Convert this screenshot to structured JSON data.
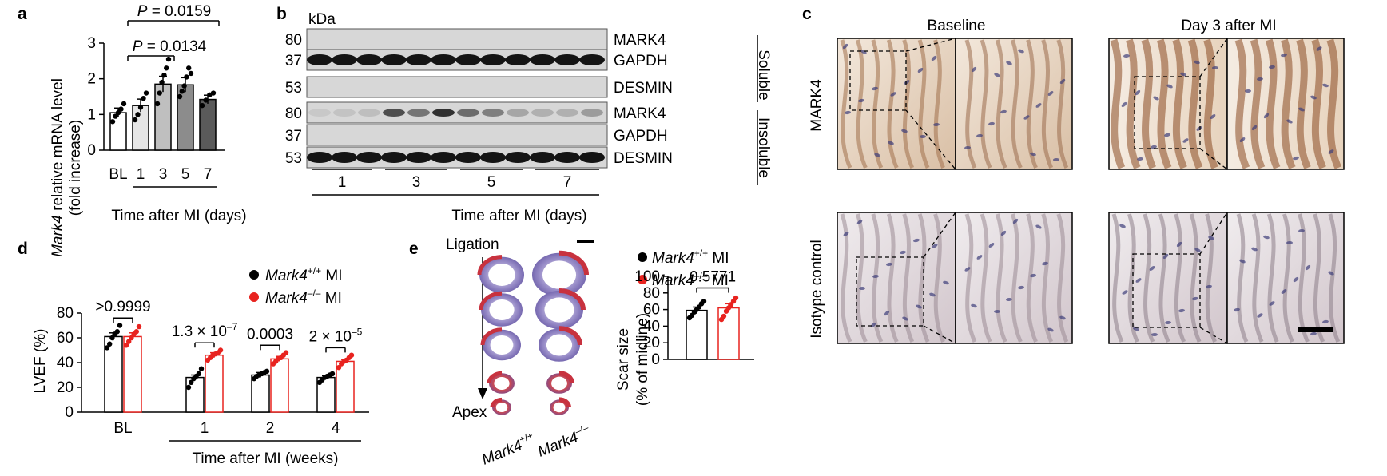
{
  "panels": {
    "a": {
      "letter": "a",
      "ylabel_italic": "Mark4",
      "ylabel_rest": " relative mRNA level",
      "ylabel_line2": "(fold increase)",
      "xlabel": "Time after MI (days)",
      "p_top": "= 0.0159",
      "p_low": "= 0.0134",
      "p_sym": "P"
    },
    "b": {
      "letter": "b",
      "kda": "kDa",
      "mw": [
        "80",
        "37",
        "53",
        "80",
        "37",
        "53"
      ],
      "proteins": [
        "MARK4",
        "GAPDH",
        "DESMIN",
        "MARK4",
        "GAPDH",
        "DESMIN"
      ],
      "fractions": [
        "Soluble",
        "Insoluble"
      ],
      "timepoints": [
        "1",
        "3",
        "5",
        "7"
      ],
      "xlabel": "Time after MI (days)"
    },
    "c": {
      "letter": "c",
      "col_titles": [
        "Baseline",
        "Day 3 after MI"
      ],
      "row_titles": [
        "MARK4",
        "Isotype control"
      ]
    },
    "d": {
      "letter": "d",
      "ylabel": "LVEF (%)",
      "xlabel": "Time after MI (weeks)",
      "legend": [
        {
          "italic": "Mark4",
          "sup": "+/+",
          "rest": " MI",
          "color": "#000000"
        },
        {
          "italic": "Mark4",
          "sup": "–/–",
          "rest": " MI",
          "color": "#e8231f"
        }
      ],
      "pvalues": [
        ">0.9999",
        "1.3 × 10",
        "0.0003",
        "2 × 10"
      ],
      "pexp": [
        "",
        "–7",
        "",
        "–5"
      ]
    },
    "e": {
      "letter": "e",
      "ligation": "Ligation",
      "apex": "Apex",
      "genotypes": [
        {
          "italic": "Mark4",
          "sup": "+/+"
        },
        {
          "italic": "Mark4",
          "sup": "–/–"
        }
      ],
      "ylabel": "Scar size",
      "ylabel_line2": "(% of midline)",
      "pvalue": "0.5771",
      "legend": [
        {
          "italic": "Mark4",
          "sup": "+/+",
          "rest": " MI",
          "color": "#000000"
        },
        {
          "italic": "Mark4",
          "sup": "–/–",
          "rest": " MI",
          "color": "#e8231f"
        }
      ]
    }
  },
  "chart_data": [
    {
      "panel": "a",
      "type": "bar",
      "categories": [
        "BL",
        "1",
        "3",
        "5",
        "7"
      ],
      "values": [
        1.05,
        1.25,
        1.85,
        1.83,
        1.42
      ],
      "errors": [
        0.13,
        0.18,
        0.22,
        0.2,
        0.12
      ],
      "points": [
        [
          0.8,
          0.95,
          1.05,
          1.15,
          1.3
        ],
        [
          0.85,
          1.0,
          1.2,
          1.45,
          1.6
        ],
        [
          1.3,
          1.6,
          1.9,
          2.1,
          2.3,
          2.55
        ],
        [
          1.5,
          1.65,
          1.8,
          2.05,
          2.3,
          2.15
        ],
        [
          1.25,
          1.4,
          1.55,
          1.6
        ]
      ],
      "bar_colors": [
        "#ffffff",
        "#e6e6e6",
        "#bfbfbf",
        "#8c8c8c",
        "#5a5a5a"
      ],
      "ylim": [
        0,
        3
      ],
      "yticks": [
        "0",
        "1",
        "2",
        "3"
      ],
      "ylabel": "Mark4 relative mRNA level (fold increase)",
      "xlabel": "Time after MI (days)"
    },
    {
      "panel": "d",
      "type": "bar",
      "categories": [
        "BL",
        "1",
        "2",
        "4"
      ],
      "series": [
        {
          "name": "Mark4+/+ MI",
          "values": [
            61,
            28,
            30,
            28
          ],
          "errors": [
            3,
            2,
            2,
            1.5
          ],
          "points": [
            [
              52,
              55,
              60,
              63,
              65,
              70
            ],
            [
              20,
              24,
              27,
              29,
              31,
              35
            ],
            [
              27,
              29,
              30,
              31,
              32,
              33
            ],
            [
              24,
              26,
              28,
              29,
              30,
              31
            ]
          ]
        },
        {
          "name": "Mark4–/– MI",
          "values": [
            61,
            46,
            43,
            41
          ],
          "errors": [
            3,
            2,
            2,
            1.5
          ],
          "points": [
            [
              54,
              57,
              60,
              63,
              65,
              69
            ],
            [
              42,
              44,
              46,
              47,
              48,
              50
            ],
            [
              39,
              41,
              43,
              44,
              46,
              48
            ],
            [
              36,
              39,
              41,
              42,
              44,
              46
            ]
          ]
        }
      ],
      "ylim": [
        0,
        80
      ],
      "yticks": [
        "0",
        "20",
        "40",
        "60",
        "80"
      ],
      "ylabel": "LVEF (%)",
      "xlabel": "Time after MI (weeks)"
    },
    {
      "panel": "e",
      "type": "bar",
      "categories": [
        "Mark4+/+ MI",
        "Mark4–/– MI"
      ],
      "values": [
        59,
        62
      ],
      "errors": [
        4,
        5
      ],
      "points": [
        [
          50,
          53,
          57,
          60,
          63,
          67,
          70
        ],
        [
          48,
          52,
          58,
          62,
          66,
          70,
          74
        ]
      ],
      "ylim": [
        0,
        100
      ],
      "yticks": [
        "0",
        "20",
        "40",
        "60",
        "80",
        "100"
      ],
      "ylabel": "Scar size (% of midline)"
    }
  ]
}
